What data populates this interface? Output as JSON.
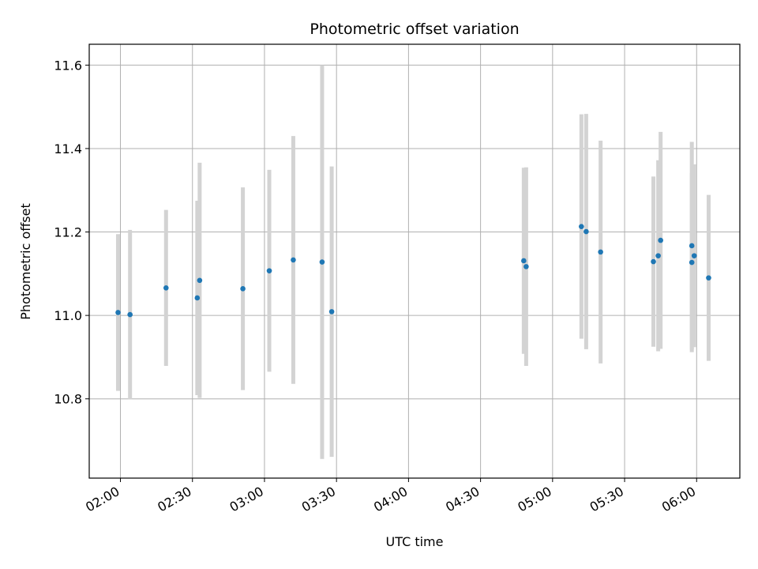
{
  "chart_data": {
    "type": "scatter",
    "title": "Photometric offset variation",
    "xlabel": "UTC time",
    "ylabel": "Photometric offset",
    "grid": true,
    "x_range": [
      "01:47",
      "06:18"
    ],
    "ylim": [
      10.61,
      11.65
    ],
    "x_ticks": [
      "02:00",
      "02:30",
      "03:00",
      "03:30",
      "04:00",
      "04:30",
      "05:00",
      "05:30",
      "06:00"
    ],
    "y_ticks": [
      10.8,
      11.0,
      11.2,
      11.4,
      11.6
    ],
    "point_color": "#1f77b4",
    "errorbar_color": "#d3d3d3",
    "points": [
      {
        "x": "01:59",
        "y": 11.007,
        "err": 0.188
      },
      {
        "x": "02:04",
        "y": 11.002,
        "err": 0.203
      },
      {
        "x": "02:19",
        "y": 11.066,
        "err": 0.187
      },
      {
        "x": "02:32",
        "y": 11.042,
        "err": 0.233
      },
      {
        "x": "02:33",
        "y": 11.084,
        "err": 0.282
      },
      {
        "x": "02:51",
        "y": 11.064,
        "err": 0.243
      },
      {
        "x": "03:02",
        "y": 11.107,
        "err": 0.242
      },
      {
        "x": "03:12",
        "y": 11.133,
        "err": 0.297
      },
      {
        "x": "03:24",
        "y": 11.128,
        "err": 0.472
      },
      {
        "x": "03:28",
        "y": 11.009,
        "err": 0.348
      },
      {
        "x": "04:48",
        "y": 11.131,
        "err": 0.223
      },
      {
        "x": "04:49",
        "y": 11.117,
        "err": 0.238
      },
      {
        "x": "05:12",
        "y": 11.213,
        "err": 0.269
      },
      {
        "x": "05:14",
        "y": 11.201,
        "err": 0.282
      },
      {
        "x": "05:20",
        "y": 11.152,
        "err": 0.267
      },
      {
        "x": "05:42",
        "y": 11.129,
        "err": 0.204
      },
      {
        "x": "05:44",
        "y": 11.143,
        "err": 0.229
      },
      {
        "x": "05:45",
        "y": 11.18,
        "err": 0.26
      },
      {
        "x": "05:58",
        "y": 11.127,
        "err": 0.215
      },
      {
        "x": "05:58",
        "y": 11.167,
        "err": 0.249
      },
      {
        "x": "05:59",
        "y": 11.143,
        "err": 0.219
      },
      {
        "x": "06:05",
        "y": 11.09,
        "err": 0.199
      }
    ]
  }
}
